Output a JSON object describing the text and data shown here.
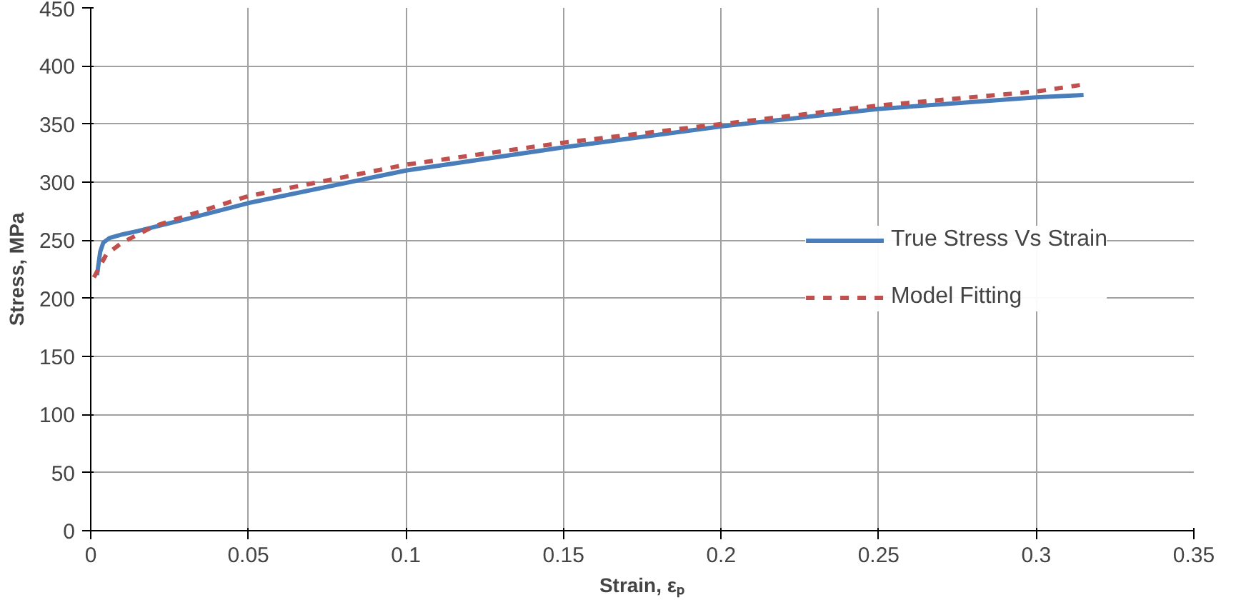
{
  "chart_data": {
    "type": "line",
    "xlabel": "Strain, εₚ",
    "ylabel": "Stress, MPa",
    "xlim": [
      0,
      0.35
    ],
    "xticks": [
      0,
      0.05,
      0.1,
      0.15,
      0.2,
      0.25,
      0.3,
      0.35
    ],
    "ylim": [
      0,
      450
    ],
    "yticks": [
      0,
      50,
      100,
      150,
      200,
      250,
      300,
      350,
      400,
      450
    ],
    "grid": true,
    "legend": "right",
    "marker": "none",
    "series": [
      {
        "name": "True Stress Vs Strain",
        "color": "#4a7ebb",
        "line_style": "solid",
        "x": [
          0.002,
          0.003,
          0.004,
          0.006,
          0.01,
          0.015,
          0.03,
          0.05,
          0.1,
          0.15,
          0.2,
          0.25,
          0.3,
          0.315
        ],
        "values": [
          220,
          240,
          248,
          252,
          255,
          258,
          268,
          282,
          310,
          330,
          348,
          363,
          373,
          375
        ]
      },
      {
        "name": "Model Fitting",
        "color": "#c0504d",
        "line_style": "dashed",
        "x": [
          0.001,
          0.005,
          0.01,
          0.02,
          0.05,
          0.1,
          0.15,
          0.2,
          0.25,
          0.3,
          0.315
        ],
        "values": [
          218,
          238,
          248,
          262,
          288,
          315,
          334,
          350,
          366,
          378,
          384
        ]
      }
    ]
  }
}
